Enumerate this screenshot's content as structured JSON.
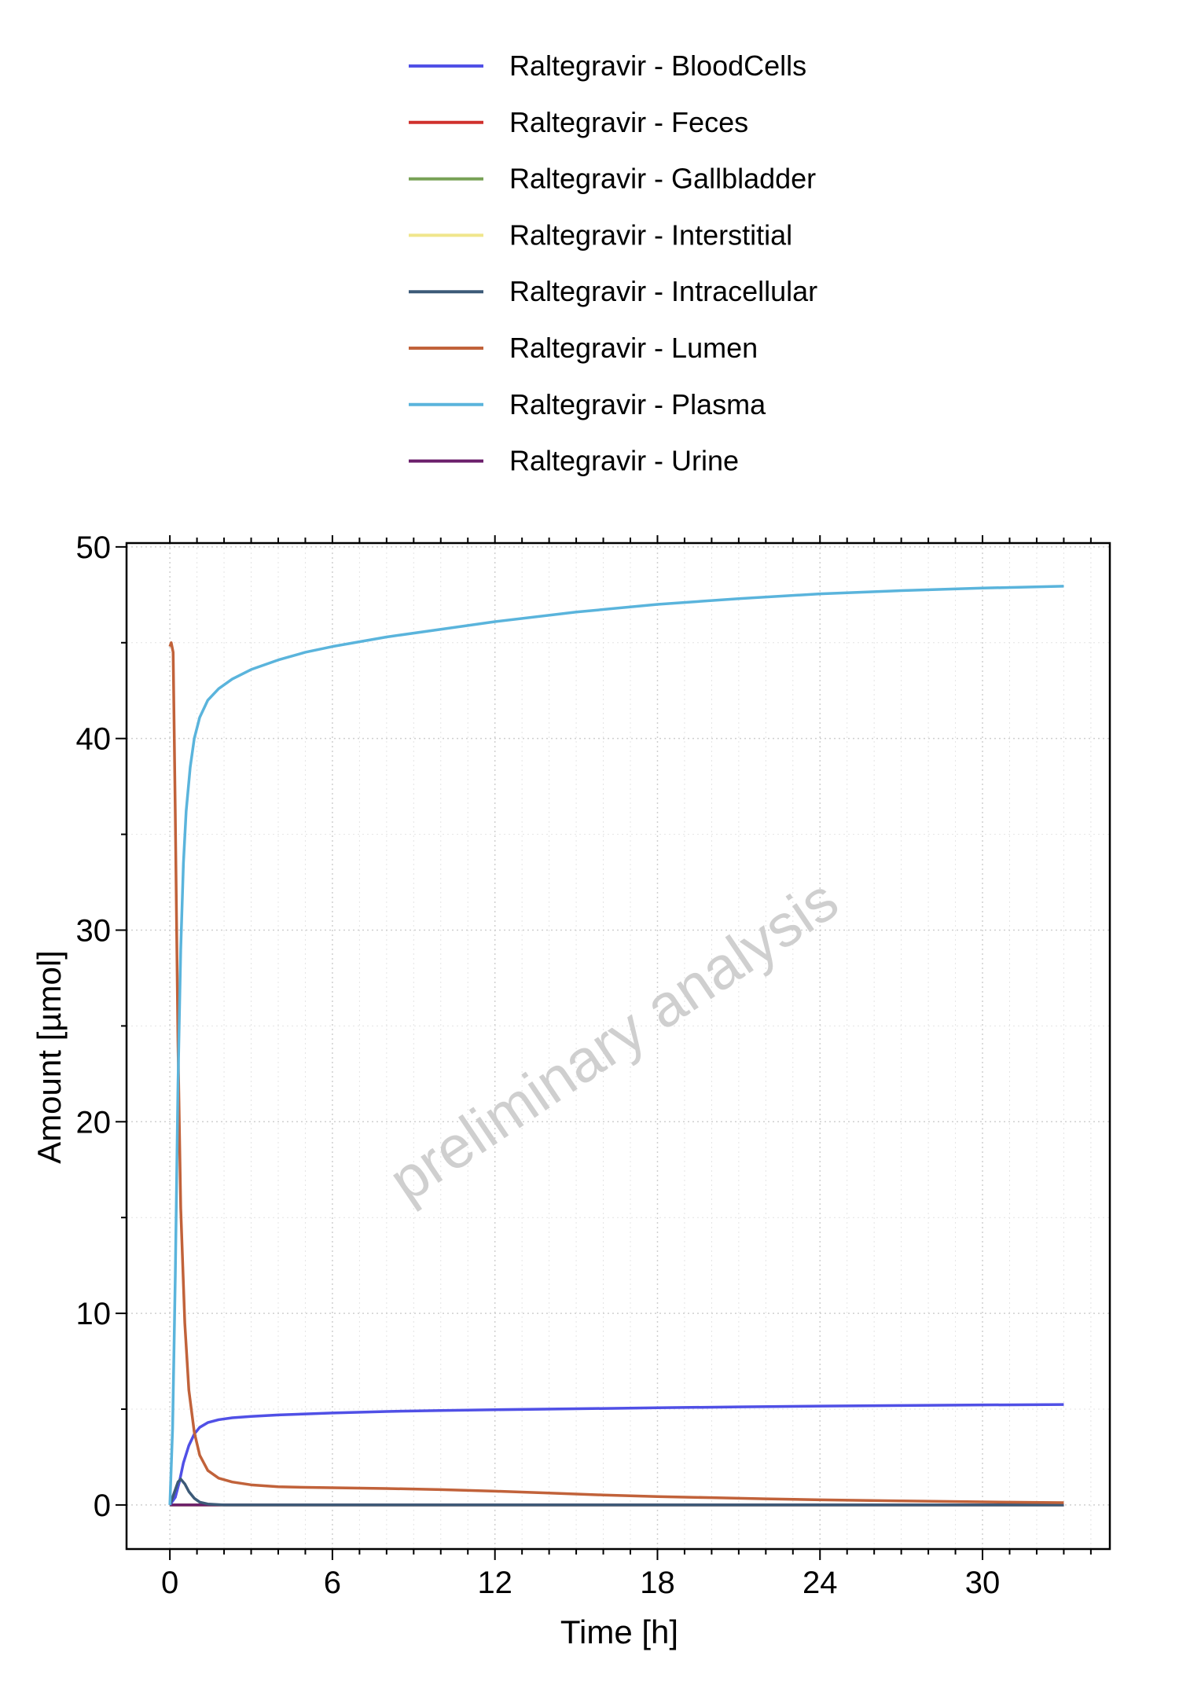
{
  "chart_data": {
    "type": "line",
    "title": "",
    "xlabel": "Time [h]",
    "ylabel": "Amount [µmol]",
    "xlim": [
      -1.6,
      34.7
    ],
    "ylim": [
      -2.3,
      50.2
    ],
    "xticks": [
      0,
      6,
      12,
      18,
      24,
      30
    ],
    "yticks": [
      0,
      10,
      20,
      30,
      40,
      50
    ],
    "grid": true,
    "legend_position": "top",
    "watermark": "preliminary analysis",
    "series": [
      {
        "name": "Raltegravir - BloodCells",
        "color": "#5050e6",
        "points": [
          [
            0,
            0
          ],
          [
            0.2,
            0.4
          ],
          [
            0.35,
            1.2
          ],
          [
            0.5,
            2.2
          ],
          [
            0.7,
            3.1
          ],
          [
            0.9,
            3.7
          ],
          [
            1.1,
            4.05
          ],
          [
            1.4,
            4.3
          ],
          [
            1.8,
            4.45
          ],
          [
            2.3,
            4.55
          ],
          [
            3,
            4.62
          ],
          [
            4,
            4.7
          ],
          [
            5,
            4.75
          ],
          [
            6,
            4.8
          ],
          [
            8,
            4.88
          ],
          [
            10,
            4.93
          ],
          [
            12,
            4.97
          ],
          [
            15,
            5.02
          ],
          [
            18,
            5.07
          ],
          [
            21,
            5.12
          ],
          [
            24,
            5.16
          ],
          [
            27,
            5.19
          ],
          [
            30,
            5.22
          ],
          [
            33,
            5.24
          ]
        ]
      },
      {
        "name": "Raltegravir - Feces",
        "color": "#d0312d",
        "points": [
          [
            0,
            0
          ],
          [
            33,
            0
          ]
        ]
      },
      {
        "name": "Raltegravir - Gallbladder",
        "color": "#77a155",
        "points": [
          [
            0,
            0
          ],
          [
            33,
            0
          ]
        ]
      },
      {
        "name": "Raltegravir - Interstitial",
        "color": "#f0e68c",
        "points": [
          [
            0,
            0
          ],
          [
            33,
            0
          ]
        ]
      },
      {
        "name": "Raltegravir - Intracellular",
        "color": "#3c5a78",
        "points": [
          [
            0,
            0
          ],
          [
            0.15,
            0.6
          ],
          [
            0.3,
            1.2
          ],
          [
            0.4,
            1.35
          ],
          [
            0.55,
            1.1
          ],
          [
            0.7,
            0.7
          ],
          [
            0.9,
            0.35
          ],
          [
            1.1,
            0.15
          ],
          [
            1.4,
            0.05
          ],
          [
            2,
            0
          ],
          [
            33,
            0
          ]
        ]
      },
      {
        "name": "Raltegravir - Lumen",
        "color": "#c1623a",
        "points": [
          [
            0,
            44.8
          ],
          [
            0.05,
            45
          ],
          [
            0.12,
            44.5
          ],
          [
            0.2,
            36
          ],
          [
            0.3,
            24
          ],
          [
            0.4,
            15.5
          ],
          [
            0.55,
            9.5
          ],
          [
            0.7,
            6
          ],
          [
            0.9,
            3.8
          ],
          [
            1.1,
            2.6
          ],
          [
            1.4,
            1.8
          ],
          [
            1.8,
            1.4
          ],
          [
            2.3,
            1.2
          ],
          [
            3,
            1.05
          ],
          [
            4,
            0.95
          ],
          [
            5,
            0.92
          ],
          [
            6,
            0.9
          ],
          [
            7,
            0.88
          ],
          [
            8,
            0.86
          ],
          [
            10,
            0.8
          ],
          [
            12,
            0.72
          ],
          [
            14,
            0.62
          ],
          [
            16,
            0.52
          ],
          [
            18,
            0.44
          ],
          [
            20,
            0.38
          ],
          [
            22,
            0.32
          ],
          [
            24,
            0.27
          ],
          [
            27,
            0.21
          ],
          [
            30,
            0.16
          ],
          [
            33,
            0.12
          ]
        ]
      },
      {
        "name": "Raltegravir - Plasma",
        "color": "#5ab4dc",
        "points": [
          [
            0,
            0
          ],
          [
            0.1,
            4
          ],
          [
            0.2,
            12
          ],
          [
            0.3,
            22
          ],
          [
            0.4,
            29
          ],
          [
            0.5,
            33.5
          ],
          [
            0.6,
            36.2
          ],
          [
            0.75,
            38.5
          ],
          [
            0.9,
            40
          ],
          [
            1.1,
            41.1
          ],
          [
            1.4,
            42
          ],
          [
            1.8,
            42.6
          ],
          [
            2.3,
            43.1
          ],
          [
            3,
            43.6
          ],
          [
            4,
            44.1
          ],
          [
            5,
            44.5
          ],
          [
            6,
            44.8
          ],
          [
            8,
            45.3
          ],
          [
            10,
            45.7
          ],
          [
            12,
            46.1
          ],
          [
            15,
            46.6
          ],
          [
            18,
            47
          ],
          [
            21,
            47.3
          ],
          [
            24,
            47.55
          ],
          [
            27,
            47.72
          ],
          [
            30,
            47.85
          ],
          [
            33,
            47.95
          ]
        ]
      },
      {
        "name": "Raltegravir - Urine",
        "color": "#6b1e6b",
        "points": [
          [
            0,
            0
          ],
          [
            33,
            0
          ]
        ]
      }
    ]
  }
}
